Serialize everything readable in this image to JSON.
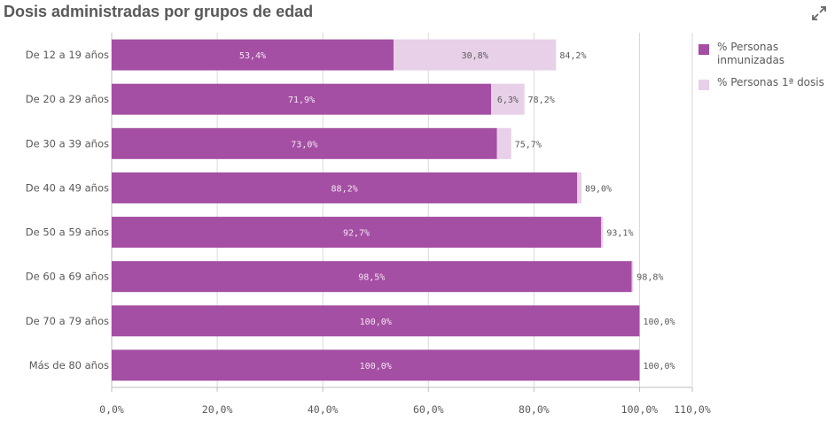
{
  "title": "Dosis administradas por grupos de edad",
  "icons": {
    "expand": "expand-icon"
  },
  "colors": {
    "primary": "#a44fa3",
    "secondary": "#e8d0e8",
    "text": "#595959",
    "grid": "#d9d9d9"
  },
  "legend": [
    {
      "label": "% Personas inmunizadas",
      "color": "#a44fa3"
    },
    {
      "label": "% Personas 1ª dosis",
      "color": "#e8d0e8"
    }
  ],
  "chart_data": {
    "type": "bar",
    "orientation": "horizontal",
    "stacked": true,
    "title": "Dosis administradas por grupos de edad",
    "categories": [
      "De 12 a 19 años",
      "De 20 a 29 años",
      "De 30 a 39 años",
      "De 40 a 49 años",
      "De 50 a 59 años",
      "De 60 a 69 años",
      "De 70 a 79 años",
      "Más de 80 años"
    ],
    "series": [
      {
        "name": "% Personas inmunizadas",
        "values": [
          53.4,
          71.9,
          73.0,
          88.2,
          92.7,
          98.5,
          100.0,
          100.0
        ],
        "labels": [
          "53,4%",
          "71,9%",
          "73,0%",
          "88,2%",
          "92,7%",
          "98,5%",
          "100,0%",
          "100,0%"
        ]
      },
      {
        "name": "% Personas 1ª dosis",
        "values": [
          30.8,
          6.3,
          2.7,
          0.8,
          0.4,
          0.3,
          0.0,
          0.0
        ],
        "labels": [
          "30,8%",
          "6,3%",
          "",
          "",
          "",
          "",
          "",
          ""
        ]
      }
    ],
    "totals": [
      "84,2%",
      "78,2%",
      "75,7%",
      "89,0%",
      "93,1%",
      "98,8%",
      "100,0%",
      "100,0%"
    ],
    "xlim": [
      0,
      110
    ],
    "xticks": [
      0,
      20,
      40,
      60,
      80,
      100,
      110
    ],
    "xtick_labels": [
      "0,0%",
      "20,0%",
      "40,0%",
      "60,0%",
      "80,0%",
      "100,0%",
      "110,0%"
    ],
    "xlabel": "",
    "ylabel": "",
    "grid": true,
    "legend_position": "right"
  }
}
